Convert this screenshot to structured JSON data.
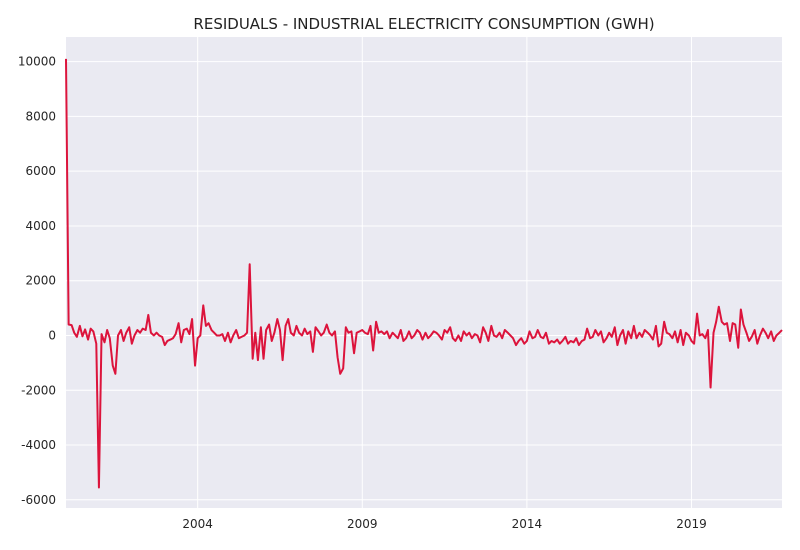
{
  "chart_data": {
    "type": "line",
    "title": "RESIDUALS - INDUSTRIAL ELECTRICITY CONSUMPTION (GWH)",
    "xlabel": "",
    "ylabel": "",
    "xlim": [
      2000.0,
      2021.75
    ],
    "ylim": [
      -6300,
      10900
    ],
    "x_ticks": [
      2004,
      2009,
      2014,
      2019
    ],
    "y_ticks": [
      -6000,
      -4000,
      -2000,
      0,
      2000,
      4000,
      6000,
      8000,
      10000
    ],
    "grid": true,
    "legend": "none",
    "background": "#eaeaf2",
    "grid_color": "#ffffff",
    "line_color": "#dc143c",
    "series": [
      {
        "x": [
          2000.0,
          2000.08,
          2000.17,
          2000.25,
          2000.33,
          2000.42,
          2000.5,
          2000.58,
          2000.67,
          2000.75,
          2000.83,
          2000.92,
          2001.0,
          2001.08,
          2001.17,
          2001.25,
          2001.33,
          2001.42,
          2001.5,
          2001.58,
          2001.67,
          2001.75,
          2001.83,
          2001.92,
          2002.0,
          2002.08,
          2002.17,
          2002.25,
          2002.33,
          2002.42,
          2002.5,
          2002.58,
          2002.67,
          2002.75,
          2002.83,
          2002.92,
          2003.0,
          2003.08,
          2003.17,
          2003.25,
          2003.33,
          2003.42,
          2003.5,
          2003.58,
          2003.67,
          2003.75,
          2003.83,
          2003.92,
          2004.0,
          2004.08,
          2004.17,
          2004.25,
          2004.33,
          2004.42,
          2004.5,
          2004.58,
          2004.67,
          2004.75,
          2004.83,
          2004.92,
          2005.0,
          2005.08,
          2005.17,
          2005.25,
          2005.33,
          2005.42,
          2005.5,
          2005.58,
          2005.67,
          2005.75,
          2005.83,
          2005.92,
          2006.0,
          2006.08,
          2006.17,
          2006.25,
          2006.33,
          2006.42,
          2006.5,
          2006.58,
          2006.67,
          2006.75,
          2006.83,
          2006.92,
          2007.0,
          2007.08,
          2007.17,
          2007.25,
          2007.33,
          2007.42,
          2007.5,
          2007.58,
          2007.67,
          2007.75,
          2007.83,
          2007.92,
          2008.0,
          2008.08,
          2008.17,
          2008.25,
          2008.33,
          2008.42,
          2008.5,
          2008.58,
          2008.67,
          2008.75,
          2008.83,
          2008.92,
          2009.0,
          2009.08,
          2009.17,
          2009.25,
          2009.33,
          2009.42,
          2009.5,
          2009.58,
          2009.67,
          2009.75,
          2009.83,
          2009.92,
          2010.0,
          2010.08,
          2010.17,
          2010.25,
          2010.33,
          2010.42,
          2010.5,
          2010.58,
          2010.67,
          2010.75,
          2010.83,
          2010.92,
          2011.0,
          2011.08,
          2011.17,
          2011.25,
          2011.33,
          2011.42,
          2011.5,
          2011.58,
          2011.67,
          2011.75,
          2011.83,
          2011.92,
          2012.0,
          2012.08,
          2012.17,
          2012.25,
          2012.33,
          2012.42,
          2012.5,
          2012.58,
          2012.67,
          2012.75,
          2012.83,
          2012.92,
          2013.0,
          2013.08,
          2013.17,
          2013.25,
          2013.33,
          2013.42,
          2013.5,
          2013.58,
          2013.67,
          2013.75,
          2013.83,
          2013.92,
          2014.0,
          2014.08,
          2014.17,
          2014.25,
          2014.33,
          2014.42,
          2014.5,
          2014.58,
          2014.67,
          2014.75,
          2014.83,
          2014.92,
          2015.0,
          2015.08,
          2015.17,
          2015.25,
          2015.33,
          2015.42,
          2015.5,
          2015.58,
          2015.67,
          2015.75,
          2015.83,
          2015.92,
          2016.0,
          2016.08,
          2016.17,
          2016.25,
          2016.33,
          2016.42,
          2016.5,
          2016.58,
          2016.67,
          2016.75,
          2016.83,
          2016.92,
          2017.0,
          2017.08,
          2017.17,
          2017.25,
          2017.33,
          2017.42,
          2017.5,
          2017.58,
          2017.67,
          2017.75,
          2017.83,
          2017.92,
          2018.0,
          2018.08,
          2018.17,
          2018.25,
          2018.33,
          2018.42,
          2018.5,
          2018.58,
          2018.67,
          2018.75,
          2018.83,
          2018.92,
          2019.0,
          2019.08,
          2019.17,
          2019.25,
          2019.33,
          2019.42,
          2019.5,
          2019.58,
          2019.67,
          2019.75,
          2019.83,
          2019.92,
          2020.0,
          2020.08,
          2020.17,
          2020.25,
          2020.33,
          2020.42,
          2020.5,
          2020.58,
          2020.67,
          2020.75,
          2020.83,
          2020.92,
          2021.0,
          2021.08,
          2021.17,
          2021.25,
          2021.33,
          2021.42,
          2021.5,
          2021.58,
          2021.67,
          2021.75
        ],
        "values": [
          10100,
          400,
          380,
          100,
          -50,
          350,
          -30,
          220,
          -150,
          250,
          150,
          -300,
          -5550,
          50,
          -250,
          200,
          -100,
          -1100,
          -1400,
          0,
          200,
          -200,
          100,
          300,
          -300,
          0,
          200,
          100,
          250,
          200,
          750,
          100,
          0,
          100,
          0,
          -50,
          -350,
          -200,
          -150,
          -100,
          50,
          450,
          -250,
          200,
          250,
          50,
          600,
          -1100,
          -100,
          0,
          1100,
          350,
          450,
          200,
          100,
          0,
          0,
          50,
          -200,
          100,
          -250,
          0,
          200,
          -100,
          -50,
          0,
          100,
          2600,
          -850,
          100,
          -900,
          300,
          -850,
          200,
          400,
          -200,
          100,
          600,
          200,
          -900,
          350,
          600,
          100,
          0,
          350,
          100,
          0,
          250,
          50,
          150,
          -600,
          300,
          150,
          0,
          100,
          400,
          100,
          0,
          150,
          -800,
          -1400,
          -1200,
          300,
          100,
          150,
          -650,
          100,
          150,
          200,
          100,
          50,
          350,
          -550,
          500,
          100,
          150,
          50,
          150,
          -100,
          100,
          0,
          -100,
          200,
          -200,
          -100,
          150,
          -100,
          0,
          200,
          100,
          -150,
          100,
          -100,
          0,
          150,
          100,
          0,
          -150,
          200,
          100,
          300,
          -100,
          -200,
          0,
          -200,
          150,
          0,
          100,
          -100,
          50,
          0,
          -250,
          300,
          100,
          -200,
          350,
          0,
          -50,
          100,
          -100,
          200,
          100,
          0,
          -100,
          -350,
          -200,
          -100,
          -300,
          -200,
          150,
          -100,
          -50,
          200,
          -50,
          -100,
          100,
          -300,
          -200,
          -250,
          -150,
          -300,
          -200,
          -50,
          -300,
          -200,
          -250,
          -100,
          -350,
          -200,
          -150,
          250,
          -100,
          -50,
          200,
          0,
          150,
          -250,
          -100,
          100,
          -50,
          300,
          -350,
          0,
          200,
          -300,
          150,
          -100,
          350,
          -100,
          100,
          -50,
          200,
          100,
          0,
          -150,
          350,
          -400,
          -300,
          500,
          100,
          50,
          -100,
          150,
          -250,
          200,
          -350,
          100,
          0,
          -200,
          -300,
          800,
          0,
          50,
          -100,
          200,
          -1900,
          100,
          500,
          1050,
          500,
          400,
          450,
          -200,
          450,
          400,
          -450,
          950,
          400,
          100,
          -200,
          -50,
          200,
          -300,
          0,
          250,
          100,
          -100,
          150,
          -200,
          0,
          100,
          200
        ]
      }
    ]
  }
}
